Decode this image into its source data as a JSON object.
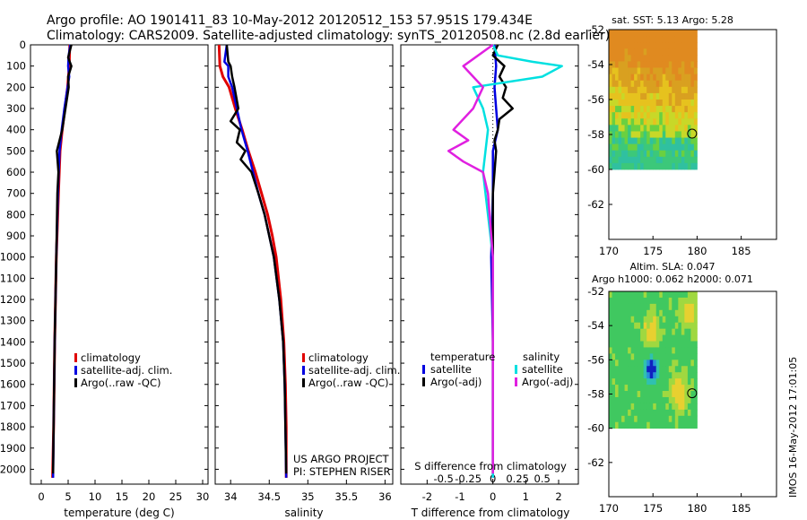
{
  "title_line1": "Argo profile: AO 1901411_83 10-May-2012 20120512_153 57.951S 179.434E",
  "title_line2": "Climatology: CARS2009. Satellite-adjusted climatology: synTS_20120508.nc (2.8d earlier)",
  "credit_line1": "US ARGO PROJECT",
  "credit_line2": "PI: STEPHEN RISER",
  "watermark": "IMOS 16-May-2012 17:01:05",
  "colors": {
    "climatology": "#e00000",
    "satellite": "#0000e0",
    "argo": "#000000",
    "sal_satellite": "#00e0e0",
    "sal_argo": "#e020e0"
  },
  "chart_data": [
    {
      "type": "line",
      "id": "temperature",
      "xlabel": "temperature (deg C)",
      "ylabel": "",
      "xlim": [
        -2,
        31
      ],
      "ylim": [
        2070,
        0
      ],
      "xticks": [
        "0",
        "5",
        "10",
        "15",
        "20",
        "25",
        "30"
      ],
      "yticks": [
        "0",
        "100",
        "200",
        "300",
        "400",
        "500",
        "600",
        "700",
        "800",
        "900",
        "1000",
        "1100",
        "1200",
        "1300",
        "1400",
        "1500",
        "1600",
        "1700",
        "1800",
        "1900",
        "2000"
      ],
      "legend": [
        "climatology",
        "satellite-adj. clim.",
        "Argo(..raw -QC)"
      ],
      "series": [
        {
          "name": "climatology",
          "depth": [
            0,
            100,
            200,
            300,
            400,
            500,
            700,
            1000,
            1400,
            1800,
            2040
          ],
          "values": [
            5.3,
            5.2,
            4.9,
            4.4,
            3.9,
            3.5,
            3.2,
            2.8,
            2.5,
            2.3,
            2.1
          ]
        },
        {
          "name": "satellite-adj. clim.",
          "depth": [
            0,
            50,
            100,
            150,
            200,
            300,
            400,
            500,
            700,
            1000,
            1400,
            1800,
            2040
          ],
          "values": [
            5.4,
            5.1,
            5.0,
            5.2,
            4.9,
            4.3,
            3.8,
            3.4,
            3.1,
            2.8,
            2.5,
            2.3,
            2.2
          ]
        },
        {
          "name": "Argo(..raw -QC)",
          "depth": [
            0,
            60,
            100,
            150,
            200,
            300,
            400,
            500,
            600,
            700,
            1000,
            1400,
            1800,
            2020
          ],
          "values": [
            5.6,
            5.0,
            5.6,
            5.0,
            5.1,
            4.5,
            3.9,
            2.9,
            3.2,
            3.0,
            2.8,
            2.5,
            2.3,
            2.2
          ]
        }
      ]
    },
    {
      "type": "line",
      "id": "salinity",
      "xlabel": "salinity",
      "xlim": [
        33.8,
        36.1
      ],
      "ylim": [
        2070,
        0
      ],
      "xticks": [
        "34",
        "34.5",
        "35",
        "35.5",
        "36"
      ],
      "legend": [
        "climatology",
        "satellite-adj. clim.",
        "Argo(..raw -QC)"
      ],
      "series": [
        {
          "name": "climatology",
          "depth": [
            0,
            100,
            150,
            200,
            300,
            400,
            500,
            600,
            700,
            800,
            900,
            1000,
            1200,
            1400,
            1600,
            1800,
            2040
          ],
          "values": [
            33.85,
            33.86,
            33.9,
            33.98,
            34.06,
            34.15,
            34.23,
            34.32,
            34.4,
            34.48,
            34.54,
            34.59,
            34.65,
            34.69,
            34.71,
            34.72,
            34.72
          ]
        },
        {
          "name": "satellite-adj. clim.",
          "depth": [
            0,
            80,
            100,
            150,
            200,
            300,
            400,
            500,
            600,
            700,
            800,
            900,
            1000,
            1200,
            1400,
            1600,
            1800,
            2040
          ],
          "values": [
            33.95,
            33.92,
            33.97,
            33.97,
            34.02,
            34.08,
            34.14,
            34.22,
            34.29,
            34.36,
            34.44,
            34.5,
            34.56,
            34.63,
            34.68,
            34.7,
            34.71,
            34.72
          ]
        },
        {
          "name": "Argo(..raw -QC)",
          "depth": [
            0,
            80,
            100,
            150,
            200,
            300,
            360,
            400,
            460,
            500,
            540,
            600,
            700,
            800,
            1000,
            1200,
            1400,
            1600,
            1800,
            2020
          ],
          "values": [
            33.95,
            33.97,
            34.0,
            34.02,
            34.05,
            34.1,
            34.0,
            34.12,
            34.08,
            34.19,
            34.13,
            34.27,
            34.36,
            34.44,
            34.56,
            34.63,
            34.68,
            34.7,
            34.71,
            34.72
          ]
        }
      ]
    },
    {
      "type": "line",
      "id": "difference",
      "xlabel": "T difference from climatology",
      "xlabel_top": "S difference from climatology",
      "xlim": [
        -2.8,
        2.6
      ],
      "ylim": [
        2070,
        0
      ],
      "xticks": [
        "-2",
        "-1",
        "0",
        "1",
        "2"
      ],
      "xticks_top": [
        "-0.5",
        "-0.25",
        "0",
        "0.25",
        "0.5"
      ],
      "legend_titles": [
        "temperature",
        "salinity"
      ],
      "legend": [
        "satellite",
        "Argo(-adj)",
        "satellite",
        "Argo(-adj)"
      ],
      "series": [
        {
          "name": "temperature satellite",
          "depth": [
            0,
            100,
            200,
            300,
            400,
            500,
            700,
            1000,
            1400,
            1800,
            2040
          ],
          "values": [
            0.05,
            0.1,
            0.05,
            0.1,
            0.15,
            0.0,
            0.0,
            -0.05,
            0.0,
            0.0,
            0.0
          ]
        },
        {
          "name": "temperature Argo(-adj)",
          "depth": [
            0,
            50,
            100,
            150,
            200,
            250,
            300,
            350,
            400,
            450,
            500,
            600,
            700,
            1000,
            1400,
            1800,
            2020
          ],
          "values": [
            0.15,
            0.0,
            0.35,
            0.2,
            0.4,
            0.3,
            0.6,
            0.2,
            0.15,
            0.05,
            0.1,
            0.05,
            0.0,
            0.0,
            0.0,
            0.0,
            0.0
          ]
        },
        {
          "name": "salinity satellite",
          "depth": [
            0,
            50,
            80,
            100,
            150,
            200,
            300,
            400,
            600,
            800,
            1000,
            1400,
            1800,
            2040
          ],
          "values": [
            0.0,
            0.05,
            0.4,
            0.7,
            0.5,
            -0.2,
            -0.1,
            -0.05,
            -0.1,
            -0.05,
            0.0,
            0.0,
            0.0,
            0.0
          ]
        },
        {
          "name": "salinity Argo(-adj)",
          "depth": [
            0,
            100,
            150,
            200,
            300,
            400,
            450,
            500,
            550,
            600,
            700,
            1000,
            1400,
            1800,
            2020
          ],
          "values": [
            0.0,
            -0.3,
            -0.2,
            -0.1,
            -0.2,
            -0.4,
            -0.25,
            -0.45,
            -0.3,
            -0.1,
            -0.05,
            0.0,
            0.0,
            0.0,
            0.0
          ]
        }
      ]
    },
    {
      "type": "heatmap",
      "id": "sst-map",
      "title": "sat. SST: 5.13  Argo: 5.28",
      "xlim": [
        170,
        189
      ],
      "ylim": [
        -64,
        -52
      ],
      "xticks": [
        "170",
        "175",
        "180",
        "185"
      ],
      "yticks": [
        "-52",
        "-54",
        "-56",
        "-58",
        "-60",
        "-62"
      ],
      "marker": {
        "lon": 179.434,
        "lat": -57.951
      }
    },
    {
      "type": "heatmap",
      "id": "sla-map",
      "title_line1": "Altim. SLA: 0.047",
      "title_line2": "Argo h1000: 0.062  h2000: 0.071",
      "xlim": [
        170,
        189
      ],
      "ylim": [
        -64,
        -52
      ],
      "xticks": [
        "170",
        "175",
        "180",
        "185"
      ],
      "yticks": [
        "-52",
        "-54",
        "-56",
        "-58",
        "-60",
        "-62"
      ],
      "marker": {
        "lon": 179.434,
        "lat": -57.951
      }
    }
  ]
}
